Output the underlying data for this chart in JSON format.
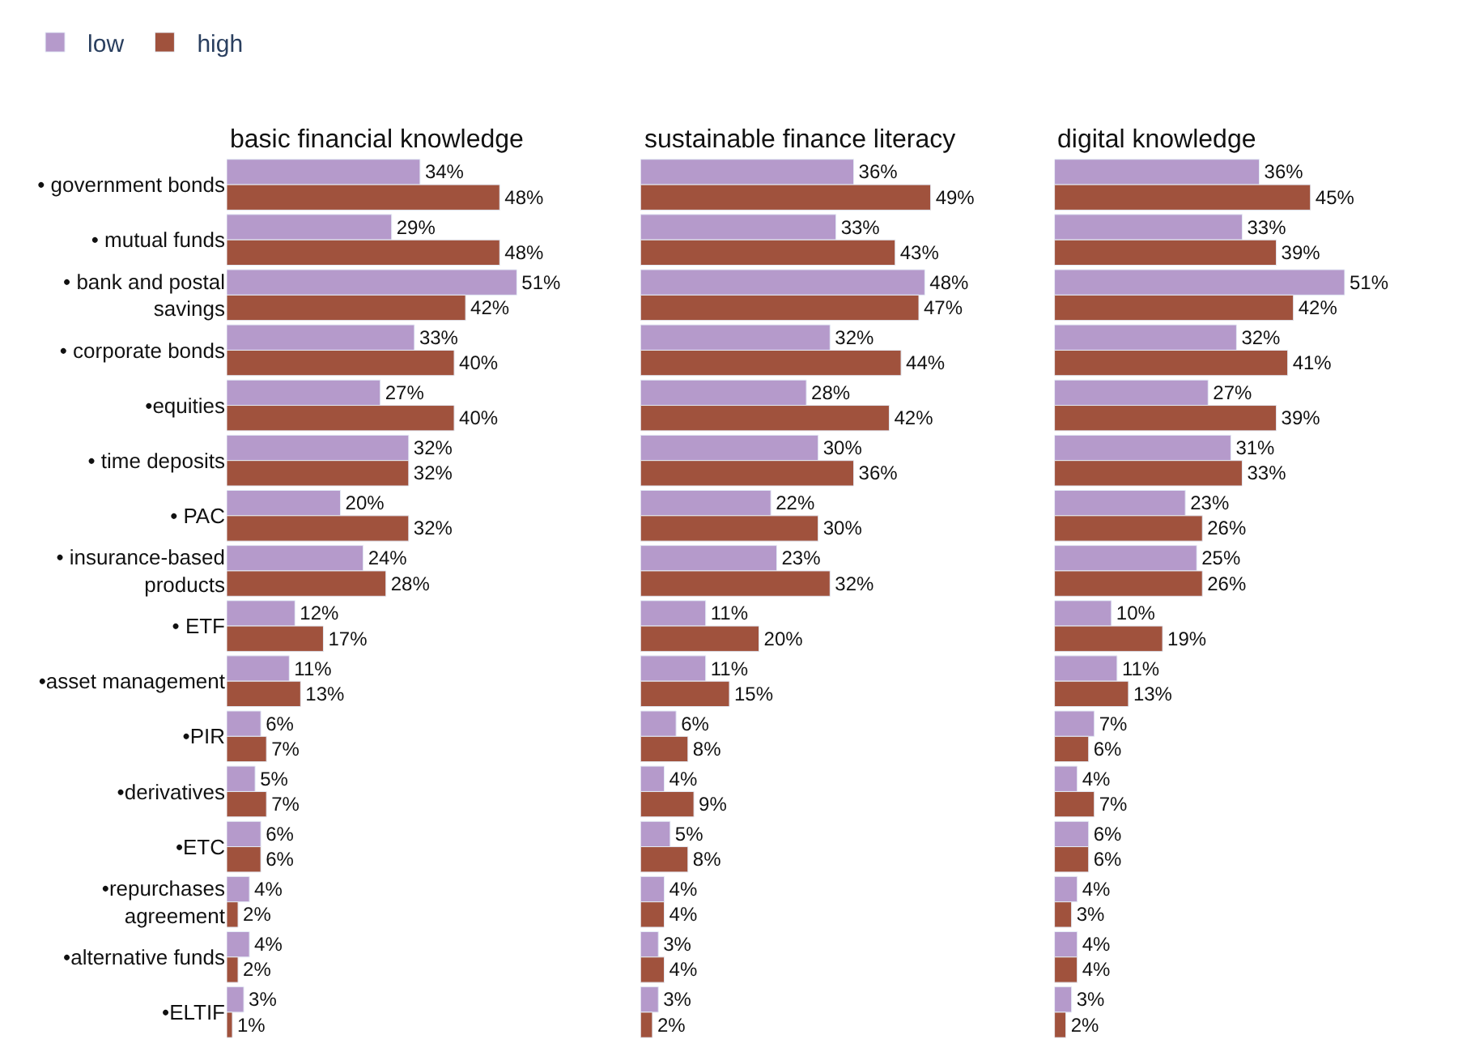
{
  "chart_data": [
    {
      "type": "bar",
      "orientation": "horizontal",
      "title": "basic financial knowledge",
      "legend": "top left",
      "tick_labels": "y",
      "categories": [
        "• government bonds",
        "• mutual funds",
        "• bank and postal savings",
        "• corporate bonds",
        "•equities",
        "• time deposits",
        "• PAC",
        "• insurance-based products",
        "• ETF",
        "•asset management",
        "•PIR",
        "•derivatives",
        "•ETC",
        "•repurchases agreement",
        "•alternative funds",
        "•ELTIF"
      ],
      "series": [
        {
          "name": "low",
          "color": "#b59acb",
          "values": [
            34,
            29,
            51,
            33,
            27,
            32,
            20,
            24,
            12,
            11,
            6,
            5,
            6,
            4,
            4,
            3
          ],
          "value_labels": [
            "34%",
            "29%",
            "51%",
            "33%",
            "27%",
            "32%",
            "20%",
            "24%",
            "12%",
            "11%",
            "6%",
            "5%",
            "6%",
            "4%",
            "4%",
            "3%"
          ]
        },
        {
          "name": "high",
          "color": "#a0523d",
          "values": [
            48,
            48,
            42,
            40,
            40,
            32,
            32,
            28,
            17,
            13,
            7,
            7,
            6,
            2,
            2,
            1
          ],
          "value_labels": [
            "48%",
            "48%",
            "42%",
            "40%",
            "40%",
            "32%",
            "32%",
            "28%",
            "17%",
            "13%",
            "7%",
            "7%",
            "6%",
            "2%",
            "2%",
            "1%"
          ]
        }
      ]
    },
    {
      "type": "bar",
      "orientation": "horizontal",
      "title": "sustainable finance literacy",
      "tick_labels": false,
      "categories": [
        null,
        null,
        null,
        null,
        null,
        null,
        null,
        null,
        null,
        null,
        null,
        null,
        null,
        null,
        null,
        null
      ],
      "series": [
        {
          "color": "#b59acb",
          "values": [
            36,
            33,
            48,
            32,
            28,
            30,
            22,
            23,
            11,
            11,
            6,
            4,
            5,
            4,
            3,
            3
          ],
          "value_labels": [
            "36%",
            "33%",
            "48%",
            "32%",
            "28%",
            "30%",
            "22%",
            "23%",
            "11%",
            "11%",
            "6%",
            "4%",
            "5%",
            "4%",
            "3%",
            "3%"
          ]
        },
        {
          "color": "#a0523d",
          "values": [
            49,
            43,
            47,
            44,
            42,
            36,
            30,
            32,
            20,
            15,
            8,
            9,
            8,
            4,
            4,
            2
          ],
          "value_labels": [
            "49%",
            "43%",
            "47%",
            "44%",
            "42%",
            "36%",
            "30%",
            "32%",
            "20%",
            "15%",
            "8%",
            "9%",
            "8%",
            "4%",
            "4%",
            "2%"
          ]
        }
      ]
    },
    {
      "type": "bar",
      "orientation": "horizontal",
      "title": "digital knowledge",
      "tick_labels": false,
      "categories": [
        null,
        null,
        null,
        null,
        null,
        null,
        null,
        null,
        null,
        null,
        null,
        null,
        null,
        null,
        null,
        null
      ],
      "series": [
        {
          "color": "#b59acb",
          "values": [
            36,
            33,
            51,
            32,
            27,
            31,
            23,
            25,
            10,
            11,
            7,
            4,
            6,
            4,
            4,
            3
          ],
          "value_labels": [
            "36%",
            "33%",
            "51%",
            "32%",
            "27%",
            "31%",
            "23%",
            "25%",
            "10%",
            "11%",
            "7%",
            "4%",
            "6%",
            "4%",
            "4%",
            "3%"
          ]
        },
        {
          "color": "#a0523d",
          "values": [
            45,
            39,
            42,
            41,
            39,
            33,
            26,
            26,
            19,
            13,
            6,
            7,
            6,
            3,
            4,
            2
          ],
          "value_labels": [
            "45%",
            "39%",
            "42%",
            "41%",
            "39%",
            "33%",
            "26%",
            "26%",
            "19%",
            "13%",
            "6%",
            "7%",
            "6%",
            "3%",
            "4%",
            "2%"
          ]
        }
      ]
    }
  ]
}
